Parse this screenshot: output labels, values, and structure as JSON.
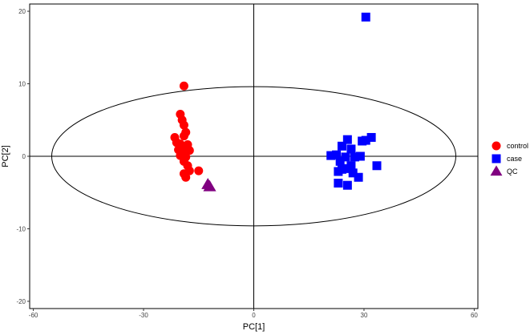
{
  "chart_data": {
    "type": "scatter",
    "title": "",
    "xlabel": "PC[1]",
    "ylabel": "PC[2]",
    "xlim": [
      -61,
      61
    ],
    "ylim": [
      -21,
      21
    ],
    "xticks": [
      -60,
      -30,
      0,
      30,
      60
    ],
    "yticks": [
      -20,
      -10,
      0,
      10,
      20
    ],
    "xtick_labels": [
      "-60",
      "-30",
      "0",
      "30",
      "60"
    ],
    "ytick_labels": [
      "-20",
      "-10",
      "0",
      "10",
      "20"
    ],
    "grid": false,
    "zero_lines": true,
    "ellipse": {
      "cx": 0,
      "cy": 0,
      "rx": 55,
      "ry": 9.6
    },
    "legend_position": "right",
    "series": [
      {
        "name": "control",
        "color": "#ff0000",
        "marker": "circle",
        "x": [
          -19,
          -20,
          -19.5,
          -19,
          -18.5,
          -19,
          -21.5,
          -21,
          -20,
          -19,
          -18,
          -20.5,
          -19.5,
          -17.5,
          -20,
          -18.5,
          -19,
          -18,
          -17.5,
          -15,
          -19,
          -18.5
        ],
        "y": [
          9.7,
          5.8,
          5.0,
          4.3,
          3.3,
          2.8,
          2.6,
          1.9,
          1.7,
          1.3,
          1.6,
          0.9,
          0.6,
          0.8,
          0.1,
          -0.1,
          -0.7,
          -1.3,
          -2.0,
          -2.0,
          -2.4,
          -2.9
        ]
      },
      {
        "name": "case",
        "color": "#0000ff",
        "marker": "square",
        "x": [
          30.5,
          32,
          29.5,
          30.5,
          25.5,
          24,
          26.5,
          22.5,
          21,
          25,
          27.5,
          29,
          23.5,
          33.5,
          26.5,
          25,
          24,
          23,
          27,
          28.5,
          23,
          25.5
        ],
        "y": [
          19.2,
          2.6,
          2.1,
          2.2,
          2.3,
          1.4,
          1.0,
          0.2,
          0.1,
          -0.1,
          -0.1,
          0.0,
          -0.7,
          -1.3,
          -1.3,
          -1.7,
          -1.8,
          -2.1,
          -2.3,
          -2.9,
          -3.7,
          -4.0
        ]
      },
      {
        "name": "QC",
        "color": "#800080",
        "marker": "triangle",
        "x": [
          -12.5,
          -12
        ],
        "y": [
          -3.9,
          -4.2
        ]
      }
    ]
  }
}
